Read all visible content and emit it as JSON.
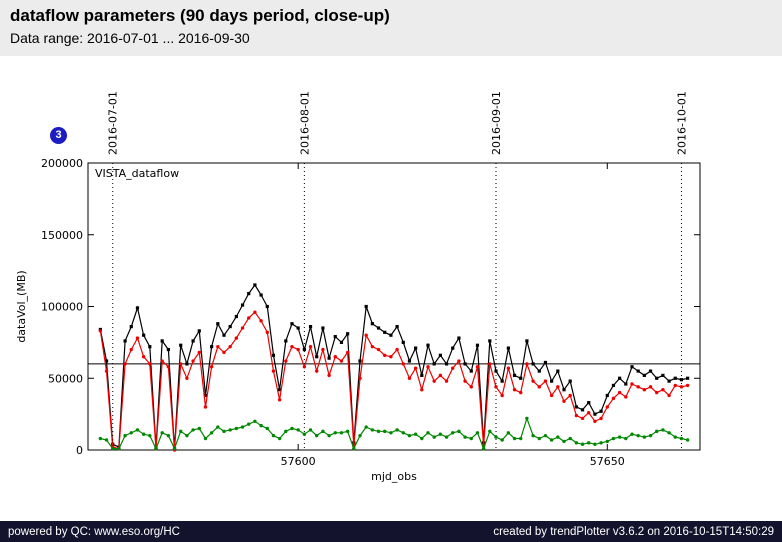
{
  "header": {
    "title": "dataflow parameters (90 days period, close-up)",
    "subtitle": "Data range: 2016-07-01 ... 2016-09-30"
  },
  "badge": {
    "label": "3",
    "color": "#1c1cc0"
  },
  "footer": {
    "left": "powered by QC: www.eso.org/HC",
    "right": "created by trendPlotter v3.6.2 on 2016-10-15T14:50:29"
  },
  "chart_data": {
    "type": "line",
    "title": "VISTA_dataflow",
    "xlabel": "mjd_obs",
    "ylabel": "dataVol_(MB)",
    "xlim": [
      57566,
      57665
    ],
    "ylim": [
      0,
      200000
    ],
    "yticks": [
      0,
      50000,
      100000,
      150000,
      200000
    ],
    "xticks": [
      57600,
      57650
    ],
    "grid": false,
    "legend_position": "none",
    "threshold_y": 60000,
    "vlines": [
      {
        "x": 57570,
        "label": "2016-07-01"
      },
      {
        "x": 57601,
        "label": "2016-08-01"
      },
      {
        "x": 57632,
        "label": "2016-09-01"
      },
      {
        "x": 57662,
        "label": "2016-10-01"
      }
    ],
    "x": [
      57568,
      57569,
      57570,
      57571,
      57572,
      57573,
      57574,
      57575,
      57576,
      57577,
      57578,
      57579,
      57580,
      57581,
      57582,
      57583,
      57584,
      57585,
      57586,
      57587,
      57588,
      57589,
      57590,
      57591,
      57592,
      57593,
      57594,
      57595,
      57596,
      57597,
      57598,
      57599,
      57600,
      57601,
      57602,
      57603,
      57604,
      57605,
      57606,
      57607,
      57608,
      57609,
      57610,
      57611,
      57612,
      57613,
      57614,
      57615,
      57616,
      57617,
      57618,
      57619,
      57620,
      57621,
      57622,
      57623,
      57624,
      57625,
      57626,
      57627,
      57628,
      57629,
      57630,
      57631,
      57632,
      57633,
      57634,
      57635,
      57636,
      57637,
      57638,
      57639,
      57640,
      57641,
      57642,
      57643,
      57644,
      57645,
      57646,
      57647,
      57648,
      57649,
      57650,
      57651,
      57652,
      57653,
      57654,
      57655,
      57656,
      57657,
      57658,
      57659,
      57660,
      57661,
      57662,
      57663
    ],
    "series": [
      {
        "name": "black",
        "color": "#000000",
        "marker": "square",
        "values": [
          84000,
          62000,
          4000,
          2000,
          76000,
          86000,
          99000,
          80000,
          72000,
          2000,
          76000,
          70000,
          1000,
          73000,
          60000,
          76000,
          83000,
          38000,
          72000,
          88000,
          80000,
          86000,
          93000,
          101000,
          109000,
          115000,
          108000,
          100000,
          66000,
          42000,
          76000,
          88000,
          85000,
          70000,
          86000,
          65000,
          85000,
          64000,
          79000,
          75000,
          81000,
          5000,
          62000,
          100000,
          88000,
          85000,
          82000,
          80000,
          86000,
          75000,
          62000,
          71000,
          52000,
          73000,
          60000,
          66000,
          60000,
          71000,
          78000,
          60000,
          55000,
          73000,
          5000,
          76000,
          55000,
          48000,
          71000,
          52000,
          50000,
          76000,
          60000,
          55000,
          61000,
          48000,
          55000,
          42000,
          48000,
          30000,
          28000,
          33000,
          25000,
          27000,
          38000,
          45000,
          50000,
          46000,
          58000,
          55000,
          52000,
          55000,
          50000,
          52000,
          48000,
          50000,
          49000,
          50000
        ]
      },
      {
        "name": "red",
        "color": "#ee0000",
        "marker": "circle",
        "values": [
          83000,
          55000,
          2000,
          1000,
          60000,
          70000,
          78000,
          65000,
          60000,
          1000,
          62000,
          58000,
          0,
          60000,
          50000,
          62000,
          68000,
          30000,
          58000,
          72000,
          68000,
          72000,
          78000,
          85000,
          92000,
          96000,
          90000,
          82000,
          55000,
          35000,
          62000,
          72000,
          70000,
          58000,
          72000,
          55000,
          70000,
          52000,
          65000,
          62000,
          68000,
          3000,
          50000,
          80000,
          72000,
          70000,
          66000,
          65000,
          70000,
          60000,
          50000,
          57000,
          42000,
          58000,
          48000,
          52000,
          48000,
          57000,
          62000,
          48000,
          44000,
          58000,
          3000,
          60000,
          44000,
          38000,
          57000,
          42000,
          40000,
          60000,
          48000,
          44000,
          48000,
          38000,
          44000,
          34000,
          38000,
          24000,
          22000,
          26000,
          20000,
          22000,
          30000,
          36000,
          40000,
          37000,
          46000,
          44000,
          42000,
          44000,
          40000,
          42000,
          38000,
          45000,
          44000,
          45000
        ]
      },
      {
        "name": "green",
        "color": "#008800",
        "marker": "circle",
        "values": [
          8000,
          7000,
          1000,
          1000,
          10000,
          12000,
          14000,
          11000,
          10000,
          1000,
          12000,
          10000,
          1000,
          13000,
          10000,
          14000,
          15000,
          8000,
          12000,
          16000,
          13000,
          14000,
          15000,
          16000,
          18000,
          20000,
          17000,
          15000,
          10000,
          8000,
          13000,
          15000,
          14000,
          11000,
          14000,
          10000,
          13000,
          10000,
          12000,
          12000,
          13000,
          1000,
          10000,
          16000,
          14000,
          13000,
          13000,
          12000,
          14000,
          12000,
          10000,
          11000,
          8000,
          12000,
          9000,
          11000,
          9000,
          12000,
          13000,
          9000,
          8000,
          12000,
          1000,
          13000,
          9000,
          7000,
          12000,
          8000,
          8000,
          22000,
          10000,
          8000,
          10000,
          7000,
          9000,
          6000,
          8000,
          5000,
          4000,
          5000,
          4000,
          5000,
          6000,
          8000,
          9000,
          8000,
          11000,
          10000,
          9000,
          10000,
          13000,
          14000,
          12000,
          9000,
          8000,
          7000
        ]
      }
    ]
  }
}
